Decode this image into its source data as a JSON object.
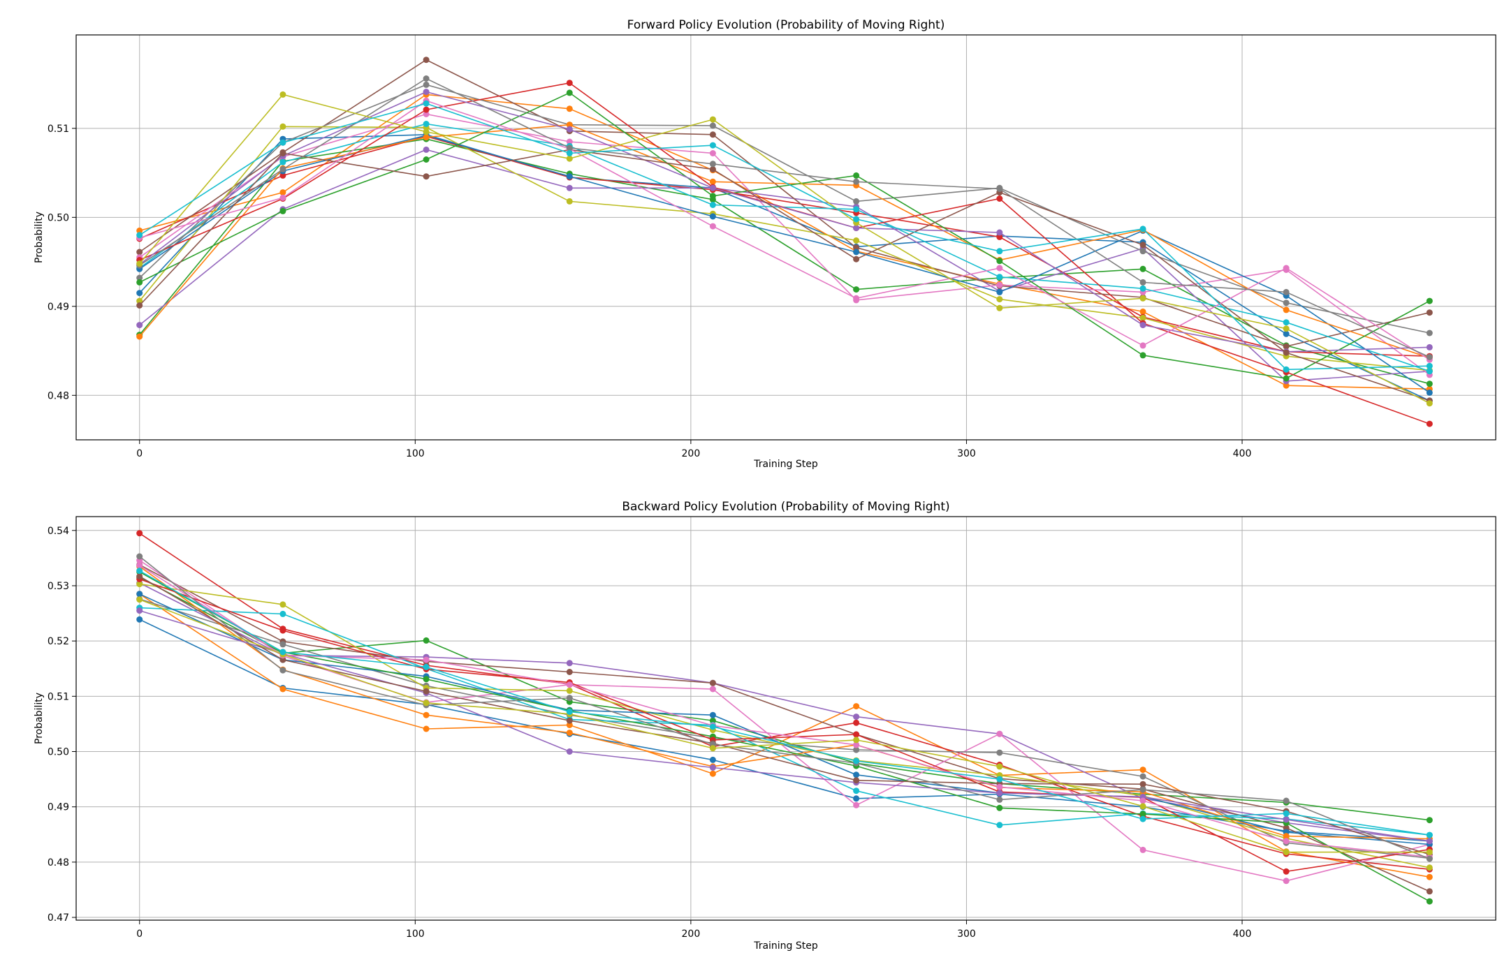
{
  "colors": [
    "#1f77b4",
    "#ff7f0e",
    "#2ca02c",
    "#d62728",
    "#9467bd",
    "#8c564b",
    "#e377c2",
    "#7f7f7f",
    "#bcbd22",
    "#17becf"
  ],
  "chart_data": [
    {
      "type": "line",
      "title": "Forward Policy Evolution (Probability of Moving Right)",
      "xlabel": "Training Step",
      "ylabel": "Probability",
      "xlim": [
        -23,
        492
      ],
      "ylim": [
        0.475,
        0.5205
      ],
      "xticks": [
        0,
        100,
        200,
        300,
        400
      ],
      "xtick_labels": [
        "0",
        "100",
        "200",
        "300",
        "400"
      ],
      "yticks": [
        0.48,
        0.49,
        0.5,
        0.51
      ],
      "ytick_labels": [
        "0.48",
        "0.49",
        "0.50",
        "0.51"
      ],
      "grid": true,
      "markers": true,
      "x": [
        0,
        52,
        104,
        156,
        208,
        260,
        312,
        364,
        416,
        468
      ],
      "series": [
        {
          "values": [
            0.4915,
            0.5088,
            0.5093,
            0.5045,
            0.5033,
            0.4967,
            0.4979,
            0.4972,
            0.4869,
            0.4794
          ]
        },
        {
          "values": [
            0.4985,
            0.5028,
            0.5138,
            0.5122,
            0.5053,
            0.4962,
            0.4925,
            0.4894,
            0.4811,
            0.4807
          ]
        },
        {
          "values": [
            0.4868,
            0.5063,
            0.5088,
            0.5049,
            0.502,
            0.4919,
            0.4932,
            0.4942,
            0.4856,
            0.4813
          ]
        },
        {
          "values": [
            0.4976,
            0.5047,
            0.5091,
            0.5045,
            0.5031,
            0.5005,
            0.4978,
            0.4888,
            0.4849,
            0.4844
          ]
        },
        {
          "values": [
            0.4879,
            0.5009,
            0.5076,
            0.5033,
            0.5033,
            0.5012,
            0.4917,
            0.4965,
            0.4816,
            0.4827
          ]
        },
        {
          "values": [
            0.4961,
            0.5073,
            0.5177,
            0.5097,
            0.5093,
            0.4966,
            0.4923,
            0.491,
            0.4855,
            0.4893
          ]
        },
        {
          "values": [
            0.4955,
            0.5068,
            0.5116,
            0.5085,
            0.5072,
            0.4907,
            0.4924,
            0.4916,
            0.4941,
            0.4823
          ]
        },
        {
          "values": [
            0.4932,
            0.5084,
            0.5149,
            0.5104,
            0.5103,
            0.5018,
            0.5033,
            0.4962,
            0.4904,
            0.487
          ]
        },
        {
          "values": [
            0.4906,
            0.5102,
            0.5101,
            0.5018,
            0.5004,
            0.4974,
            0.4908,
            0.4887,
            0.4844,
            0.4828
          ]
        },
        {
          "values": [
            0.4943,
            0.5062,
            0.5105,
            0.508,
            0.5014,
            0.5009,
            0.4933,
            0.492,
            0.4882,
            0.4827
          ]
        },
        {
          "values": [
            0.4942,
            0.5052,
            0.5092,
            0.5046,
            0.5001,
            0.4961,
            0.4916,
            0.4985,
            0.4912,
            0.4803
          ]
        },
        {
          "values": [
            0.4866,
            0.5055,
            0.509,
            0.5104,
            0.504,
            0.5036,
            0.4952,
            0.4986,
            0.4896,
            0.4842
          ]
        },
        {
          "values": [
            0.4927,
            0.5007,
            0.5065,
            0.514,
            0.5024,
            0.5047,
            0.4951,
            0.4845,
            0.4819,
            0.4906
          ]
        },
        {
          "values": [
            0.4952,
            0.5021,
            0.5121,
            0.5151,
            0.5034,
            0.4988,
            0.5021,
            0.4881,
            0.4826,
            0.4768
          ]
        },
        {
          "values": [
            0.4947,
            0.5069,
            0.5141,
            0.5099,
            0.5033,
            0.4988,
            0.4983,
            0.4879,
            0.4849,
            0.4854
          ]
        },
        {
          "values": [
            0.4901,
            0.5072,
            0.5046,
            0.5076,
            0.5054,
            0.4953,
            0.5028,
            0.4969,
            0.4848,
            0.4794
          ]
        },
        {
          "values": [
            0.4977,
            0.5022,
            0.5131,
            0.5077,
            0.499,
            0.4909,
            0.4943,
            0.4856,
            0.4943,
            0.484
          ]
        },
        {
          "values": [
            0.4946,
            0.5054,
            0.5156,
            0.5078,
            0.506,
            0.504,
            0.5032,
            0.4927,
            0.4916,
            0.4843
          ]
        },
        {
          "values": [
            0.4948,
            0.5138,
            0.5096,
            0.5066,
            0.511,
            0.4994,
            0.4898,
            0.4909,
            0.4875,
            0.4791
          ]
        },
        {
          "values": [
            0.498,
            0.5084,
            0.5128,
            0.5072,
            0.5081,
            0.4998,
            0.4962,
            0.4987,
            0.4829,
            0.4833
          ]
        }
      ]
    },
    {
      "type": "line",
      "title": "Backward Policy Evolution (Probability of Moving Right)",
      "xlabel": "Training Step",
      "ylabel": "Probability",
      "xlim": [
        -23,
        492
      ],
      "ylim": [
        0.4695,
        0.5425
      ],
      "xticks": [
        0,
        100,
        200,
        300,
        400
      ],
      "xtick_labels": [
        "0",
        "100",
        "200",
        "300",
        "400"
      ],
      "yticks": [
        0.47,
        0.48,
        0.49,
        0.5,
        0.51,
        0.52,
        0.53,
        0.54
      ],
      "ytick_labels": [
        "0.47",
        "0.48",
        "0.49",
        "0.50",
        "0.51",
        "0.52",
        "0.53",
        "0.54"
      ],
      "grid": true,
      "markers": true,
      "x": [
        0,
        52,
        104,
        156,
        208,
        260,
        312,
        364,
        416,
        468
      ],
      "series": [
        {
          "values": [
            0.5239,
            0.5115,
            0.5085,
            0.5032,
            0.4985,
            0.4915,
            0.4923,
            0.49,
            0.4856,
            0.4838
          ]
        },
        {
          "values": [
            0.5285,
            0.5113,
            0.5041,
            0.5048,
            0.496,
            0.5082,
            0.4957,
            0.4967,
            0.4819,
            0.4773
          ]
        },
        {
          "values": [
            0.5315,
            0.5178,
            0.5201,
            0.509,
            0.5056,
            0.4979,
            0.4942,
            0.4923,
            0.4908,
            0.4876
          ]
        },
        {
          "values": [
            0.5395,
            0.5222,
            0.5156,
            0.5122,
            0.5009,
            0.5052,
            0.4976,
            0.4883,
            0.4815,
            0.4787
          ]
        },
        {
          "values": [
            0.5305,
            0.5174,
            0.5171,
            0.516,
            0.5124,
            0.5063,
            0.5032,
            0.4915,
            0.4871,
            0.4838
          ]
        },
        {
          "values": [
            0.5338,
            0.5199,
            0.5163,
            0.5144,
            0.5124,
            0.5031,
            0.4951,
            0.4932,
            0.4862,
            0.4747
          ]
        },
        {
          "values": [
            0.5346,
            0.5173,
            0.5089,
            0.5121,
            0.5113,
            0.4903,
            0.5032,
            0.4822,
            0.4766,
            0.4832
          ]
        },
        {
          "values": [
            0.5276,
            0.5194,
            0.5119,
            0.5066,
            0.5024,
            0.5003,
            0.4998,
            0.4955,
            0.4835,
            0.4807
          ]
        },
        {
          "values": [
            0.5303,
            0.5266,
            0.5115,
            0.511,
            0.5039,
            0.4984,
            0.4957,
            0.492,
            0.4843,
            0.479
          ]
        },
        {
          "values": [
            0.526,
            0.5249,
            0.515,
            0.5058,
            0.5048,
            0.4929,
            0.4867,
            0.4888,
            0.4878,
            0.4849
          ]
        },
        {
          "values": [
            0.5285,
            0.5166,
            0.5136,
            0.5075,
            0.5066,
            0.4958,
            0.4925,
            0.4918,
            0.4854,
            0.4832
          ]
        },
        {
          "values": [
            0.5335,
            0.5148,
            0.5066,
            0.5034,
            0.4973,
            0.5012,
            0.4935,
            0.4927,
            0.4847,
            0.4842
          ]
        },
        {
          "values": [
            0.5325,
            0.518,
            0.5131,
            0.5074,
            0.5027,
            0.4974,
            0.4898,
            0.4887,
            0.4871,
            0.4729
          ]
        },
        {
          "values": [
            0.5312,
            0.5219,
            0.5149,
            0.5125,
            0.5021,
            0.5031,
            0.4927,
            0.4917,
            0.4783,
            0.4823
          ]
        },
        {
          "values": [
            0.5255,
            0.5177,
            0.5106,
            0.5,
            0.4971,
            0.4944,
            0.4925,
            0.4918,
            0.4877,
            0.4838
          ]
        },
        {
          "values": [
            0.5317,
            0.5166,
            0.5109,
            0.5056,
            0.5015,
            0.4948,
            0.4942,
            0.4941,
            0.4892,
            0.4814
          ]
        },
        {
          "values": [
            0.5337,
            0.5174,
            0.5166,
            0.5121,
            0.5047,
            0.5012,
            0.4936,
            0.4911,
            0.4838,
            0.4809
          ]
        },
        {
          "values": [
            0.5353,
            0.5147,
            0.5084,
            0.5097,
            0.5013,
            0.4979,
            0.4913,
            0.4931,
            0.4911,
            0.4806
          ]
        },
        {
          "values": [
            0.5275,
            0.5176,
            0.5088,
            0.5068,
            0.5006,
            0.5021,
            0.4973,
            0.4901,
            0.4818,
            0.4818
          ]
        },
        {
          "values": [
            0.5327,
            0.518,
            0.5153,
            0.5072,
            0.5045,
            0.4983,
            0.495,
            0.4878,
            0.4888,
            0.4849
          ]
        }
      ]
    }
  ]
}
